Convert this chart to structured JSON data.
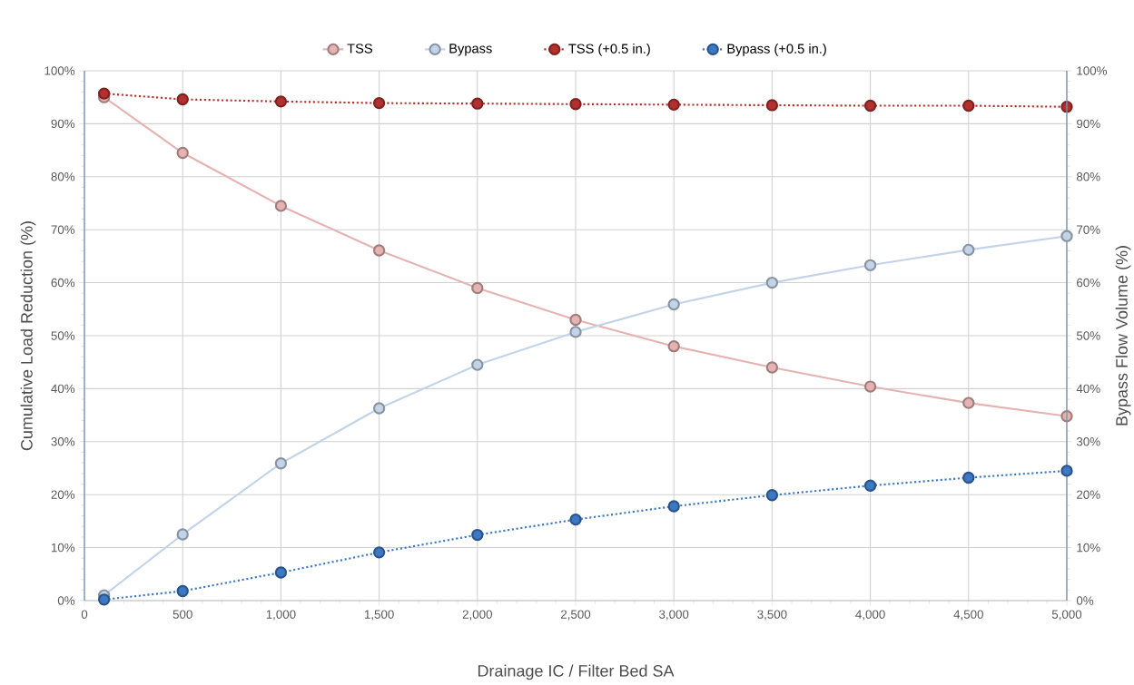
{
  "chart_data": {
    "type": "line",
    "xlabel": "Drainage IC / Filter Bed SA",
    "ylabel": "Cumulative Load Reduction (%)",
    "y2label": "Bypass Flow Volume (%)",
    "x": [
      100,
      500,
      1000,
      1500,
      2000,
      2500,
      3000,
      3500,
      4000,
      4500,
      5000
    ],
    "series": [
      {
        "name": "TSS",
        "color": "#e6b3b3",
        "line_style": "solid",
        "values": [
          95,
          84.5,
          74.5,
          66.1,
          59,
          53,
          48,
          44,
          40.4,
          37.3,
          34.8
        ]
      },
      {
        "name": "Bypass",
        "color": "#c3d3e8",
        "line_style": "solid",
        "axis": "y2",
        "values": [
          1,
          12.5,
          25.9,
          36.3,
          44.5,
          50.7,
          55.9,
          60,
          63.3,
          66.2,
          68.8
        ]
      },
      {
        "name": "TSS (+0.5 in.)",
        "color": "#b3302e",
        "line_style": "dotted",
        "values": [
          95.7,
          94.6,
          94.2,
          93.9,
          93.8,
          93.7,
          93.6,
          93.5,
          93.4,
          93.4,
          93.2
        ]
      },
      {
        "name": "Bypass (+0.5 in.)",
        "color": "#3c78c3",
        "line_style": "dotted",
        "axis": "y2",
        "values": [
          0.2,
          1.8,
          5.3,
          9.1,
          12.4,
          15.3,
          17.8,
          19.9,
          21.7,
          23.2,
          24.5
        ]
      }
    ],
    "xlim": [
      0,
      5000
    ],
    "xticks": [
      0,
      500,
      {
        "value": 1000,
        "label": "1,000"
      },
      {
        "value": 1500,
        "label": "1,500"
      },
      {
        "value": 2000,
        "label": "2,000"
      },
      {
        "value": 2500,
        "label": "2,500"
      },
      {
        "value": 3000,
        "label": "3,000"
      },
      {
        "value": 3500,
        "label": "3,500"
      },
      {
        "value": 4000,
        "label": "4,000"
      },
      {
        "value": 4500,
        "label": "4,500"
      },
      {
        "value": 5000,
        "label": "5,000"
      }
    ],
    "ylim": [
      0,
      100
    ],
    "yticks": [
      {
        "value": 0,
        "label": "0%"
      },
      {
        "value": 10,
        "label": "10%"
      },
      {
        "value": 20,
        "label": "20%"
      },
      {
        "value": 30,
        "label": "30%"
      },
      {
        "value": 40,
        "label": "40%"
      },
      {
        "value": 50,
        "label": "50%"
      },
      {
        "value": 60,
        "label": "60%"
      },
      {
        "value": 70,
        "label": "70%"
      },
      {
        "value": 80,
        "label": "80%"
      },
      {
        "value": 90,
        "label": "90%"
      },
      {
        "value": 100,
        "label": "100%"
      }
    ],
    "y2lim": [
      0,
      100
    ],
    "y2ticks": [
      {
        "value": 0,
        "label": "0%"
      },
      {
        "value": 10,
        "label": "10%"
      },
      {
        "value": 20,
        "label": "20%"
      },
      {
        "value": 30,
        "label": "30%"
      },
      {
        "value": 40,
        "label": "40%"
      },
      {
        "value": 50,
        "label": "50%"
      },
      {
        "value": 60,
        "label": "60%"
      },
      {
        "value": 70,
        "label": "70%"
      },
      {
        "value": 80,
        "label": "80%"
      },
      {
        "value": 90,
        "label": "90%"
      },
      {
        "value": 100,
        "label": "100%"
      }
    ],
    "grid": true,
    "legend": "top",
    "marker": "circle"
  }
}
